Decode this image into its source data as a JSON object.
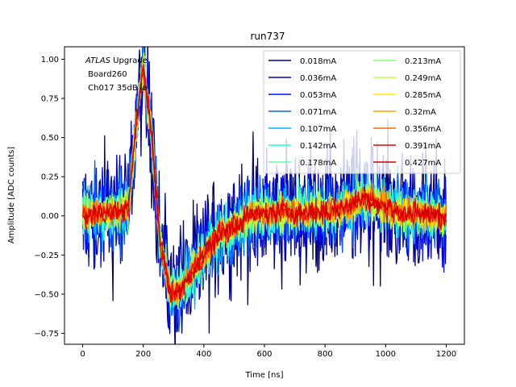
{
  "chart_data": {
    "type": "line",
    "title": "run737",
    "xlabel": "Time [ns]",
    "ylabel": "Amplitude [ADC counts]",
    "xlim": [
      -60,
      1260
    ],
    "ylim": [
      -0.82,
      1.08
    ],
    "x_ticks": [
      0,
      200,
      400,
      600,
      800,
      1000,
      1200
    ],
    "y_ticks": [
      -0.75,
      -0.5,
      -0.25,
      0.0,
      0.25,
      0.5,
      0.75,
      1.0
    ],
    "x_tick_labels": [
      "0",
      "200",
      "400",
      "600",
      "800",
      "1000",
      "1200"
    ],
    "y_tick_labels": [
      "−0.75",
      "−0.50",
      "−0.25",
      "0.00",
      "0.25",
      "0.50",
      "0.75",
      "1.00"
    ],
    "grid": false,
    "legend_placement": "top-right",
    "legend_columns": 2,
    "annotation": {
      "italic_part": "ATLAS",
      "rest_line1": " Upgrade",
      "line2": " Board260",
      "line3": " Ch017 35dB lo"
    },
    "pulse_shape": {
      "x": [
        0,
        150,
        175,
        200,
        225,
        255,
        290,
        320,
        380,
        450,
        550,
        650,
        750,
        850,
        900,
        930,
        980,
        1050,
        1200
      ],
      "y": [
        0.0,
        0.04,
        0.55,
        0.97,
        0.55,
        -0.15,
        -0.5,
        -0.48,
        -0.3,
        -0.12,
        0.0,
        0.03,
        0.02,
        0.04,
        0.09,
        0.12,
        0.08,
        0.02,
        0.0
      ]
    },
    "series": [
      {
        "name": "0.018mA",
        "color": "#00007f",
        "noise": 0.22
      },
      {
        "name": "0.036mA",
        "color": "#0000d1",
        "noise": 0.17
      },
      {
        "name": "0.053mA",
        "color": "#0012ff",
        "noise": 0.14
      },
      {
        "name": "0.071mA",
        "color": "#0062ff",
        "noise": 0.12
      },
      {
        "name": "0.107mA",
        "color": "#00b4ff",
        "noise": 0.1
      },
      {
        "name": "0.142mA",
        "color": "#1cffdb",
        "noise": 0.085
      },
      {
        "name": "0.178mA",
        "color": "#5affa3",
        "noise": 0.075
      },
      {
        "name": "0.213mA",
        "color": "#7cff79",
        "noise": 0.065
      },
      {
        "name": "0.249mA",
        "color": "#b9ff3c",
        "noise": 0.058
      },
      {
        "name": "0.285mA",
        "color": "#ffe600",
        "noise": 0.052
      },
      {
        "name": "0.32mA",
        "color": "#ffa300",
        "noise": 0.047
      },
      {
        "name": "0.356mA",
        "color": "#ff6400",
        "noise": 0.043
      },
      {
        "name": "0.391mA",
        "color": "#f10800",
        "noise": 0.04
      },
      {
        "name": "0.427mA",
        "color": "#d40000",
        "noise": 0.037
      }
    ]
  }
}
